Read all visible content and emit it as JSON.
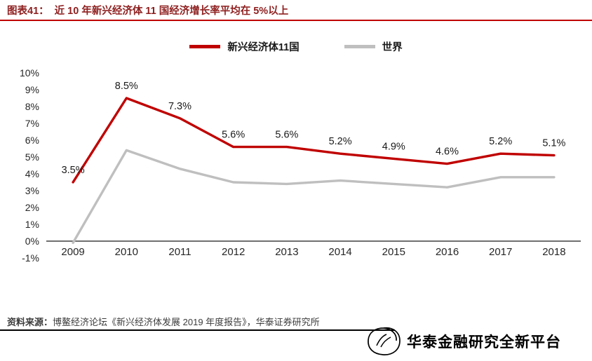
{
  "header": {
    "figure_label": "图表41：",
    "title": "近 10 年新兴经济体 11 国经济增长率平均在 5%以上"
  },
  "chart_data": {
    "type": "line",
    "title": "近 10 年新兴经济体 11 国经济增长率平均在 5%以上",
    "categories": [
      "2009",
      "2010",
      "2011",
      "2012",
      "2013",
      "2014",
      "2015",
      "2016",
      "2017",
      "2018"
    ],
    "series": [
      {
        "name": "新兴经济体11国",
        "color": "#c00000",
        "values": [
          3.5,
          8.5,
          7.3,
          5.6,
          5.6,
          5.2,
          4.9,
          4.6,
          5.2,
          5.1
        ],
        "data_labels": [
          "3.5%",
          "8.5%",
          "7.3%",
          "5.6%",
          "5.6%",
          "5.2%",
          "4.9%",
          "4.6%",
          "5.2%",
          "5.1%"
        ]
      },
      {
        "name": "世界",
        "color": "#bfbfbf",
        "values": [
          -0.1,
          5.4,
          4.3,
          3.5,
          3.4,
          3.6,
          3.4,
          3.2,
          3.8,
          3.8
        ],
        "data_labels": []
      }
    ],
    "ylim": [
      -1,
      10
    ],
    "y_ticks": [
      "10%",
      "9%",
      "8%",
      "7%",
      "6%",
      "5%",
      "4%",
      "3%",
      "2%",
      "1%",
      "0%",
      "-1%"
    ],
    "xlabel": "",
    "ylabel": "",
    "grid": false,
    "legend_position": "top-center"
  },
  "footer": {
    "source_label": "资料来源：",
    "source_text": "博鳌经济论坛《新兴经济体发展 2019 年度报告》，华泰证券研究所"
  },
  "watermark": {
    "text": "华泰金融研究全新平台"
  },
  "colors": {
    "accent_red": "#c00000",
    "series_gray": "#bfbfbf",
    "axis_line": "#404040",
    "header_text": "#8e1f1f"
  }
}
